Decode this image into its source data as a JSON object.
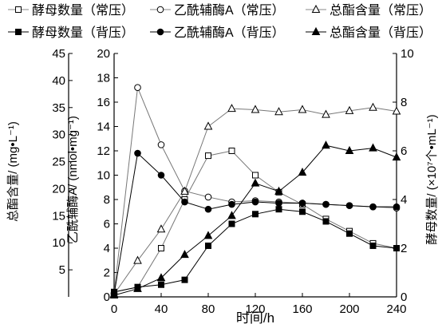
{
  "chart_data": {
    "type": "line",
    "xlabel": "时间/h",
    "x_ticks": [
      0,
      40,
      80,
      120,
      160,
      200,
      240
    ],
    "xlim": [
      0,
      240
    ],
    "y_left_outer": {
      "label": "总酯含量/ (mg•L⁻¹)",
      "ticks": [
        5,
        10,
        15,
        20,
        25,
        30,
        35,
        40,
        45
      ],
      "ylim": [
        0,
        45
      ]
    },
    "y_left_inner": {
      "label": "乙酰辅酶A/ (nmol•mg⁻¹)",
      "ticks": [
        0,
        2,
        4,
        6,
        8,
        10,
        12,
        14,
        16,
        18,
        20
      ],
      "ylim": [
        0,
        20
      ]
    },
    "y_right": {
      "label": "酵母数量/ (×10⁷个•mL⁻¹)",
      "ticks": [
        0,
        2,
        4,
        6,
        8,
        10
      ],
      "ylim": [
        0,
        10
      ]
    },
    "x": [
      0,
      20,
      40,
      60,
      80,
      100,
      120,
      140,
      160,
      180,
      200,
      220,
      240
    ],
    "series": [
      {
        "name": "酵母数量（常压）",
        "axis": "right",
        "marker": "square-open",
        "values": [
          0.2,
          0.4,
          2.0,
          4.0,
          5.8,
          6.0,
          5.0,
          4.3,
          3.8,
          3.2,
          2.7,
          2.2,
          2.0
        ]
      },
      {
        "name": "乙酰辅酶A（常压）",
        "axis": "left_inner",
        "marker": "circle-open",
        "values": [
          0.3,
          17.2,
          12.5,
          8.7,
          8.2,
          7.8,
          7.9,
          7.8,
          7.7,
          7.6,
          7.5,
          7.4,
          7.3
        ]
      },
      {
        "name": "总酯含量（常压）",
        "axis": "left_outer",
        "marker": "triangle-open",
        "values": [
          0.5,
          6.7,
          12.5,
          19.5,
          31.5,
          34.8,
          34.6,
          34.2,
          34.6,
          33.7,
          34.4,
          35.0,
          34.3
        ]
      },
      {
        "name": "酵母数量（背压）",
        "axis": "right",
        "marker": "square-filled",
        "values": [
          0.2,
          0.4,
          0.5,
          0.7,
          2.1,
          3.0,
          3.4,
          3.6,
          3.5,
          3.1,
          2.6,
          2.1,
          2.0
        ]
      },
      {
        "name": "乙酰辅酶A（背压）",
        "axis": "left_inner",
        "marker": "circle-filled",
        "values": [
          0.2,
          11.8,
          10.0,
          7.8,
          7.2,
          7.6,
          7.8,
          7.7,
          7.7,
          7.6,
          7.5,
          7.4,
          7.4
        ]
      },
      {
        "name": "总酯含量（背压）",
        "axis": "left_outer",
        "marker": "triangle-filled",
        "values": [
          0.3,
          1.5,
          3.5,
          7.8,
          11.3,
          15.0,
          21.0,
          19.5,
          23.0,
          28.0,
          27.0,
          27.5,
          25.8
        ]
      }
    ],
    "legend_position": "top",
    "grid": false
  }
}
